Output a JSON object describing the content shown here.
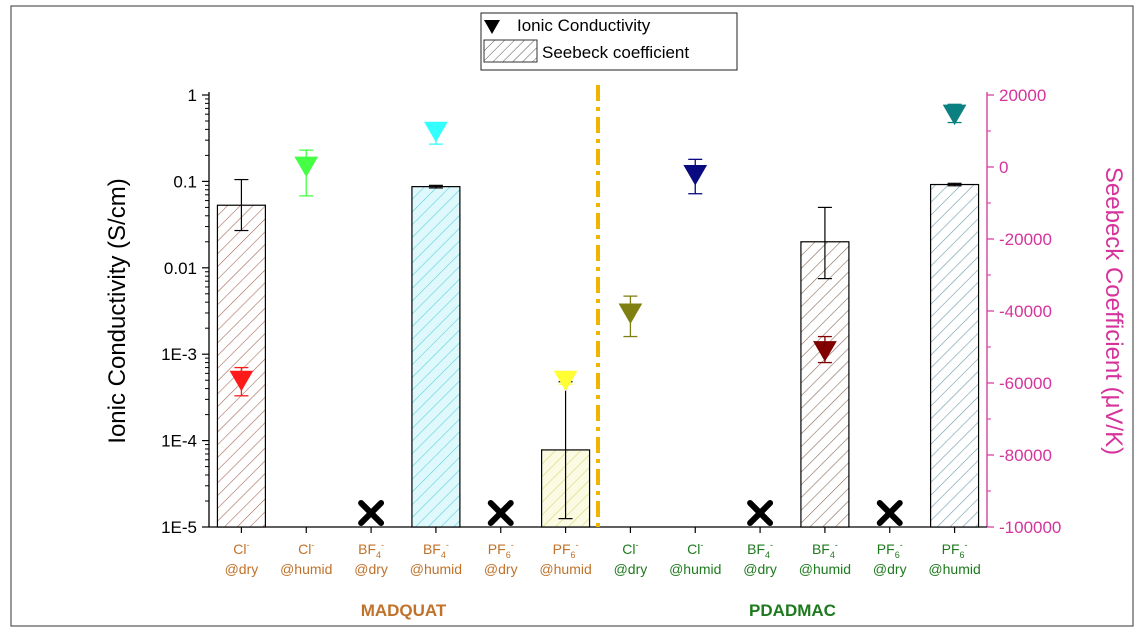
{
  "chart_data": {
    "type": "bar",
    "categories": [
      {
        "anion": "Cl",
        "charge": "-",
        "anion_sub": "",
        "condition": "@dry",
        "group": "MADQUAT"
      },
      {
        "anion": "Cl",
        "charge": "-",
        "anion_sub": "",
        "condition": "@humid",
        "group": "MADQUAT"
      },
      {
        "anion": "BF",
        "charge": "-",
        "anion_sub": "4",
        "condition": "@dry",
        "group": "MADQUAT"
      },
      {
        "anion": "BF",
        "charge": "-",
        "anion_sub": "4",
        "condition": "@humid",
        "group": "MADQUAT"
      },
      {
        "anion": "PF",
        "charge": "-",
        "anion_sub": "6",
        "condition": "@dry",
        "group": "MADQUAT"
      },
      {
        "anion": "PF",
        "charge": "-",
        "anion_sub": "6",
        "condition": "@humid",
        "group": "MADQUAT"
      },
      {
        "anion": "Cl",
        "charge": "-",
        "anion_sub": "",
        "condition": "@dry",
        "group": "PDADMAC"
      },
      {
        "anion": "Cl",
        "charge": "-",
        "anion_sub": "",
        "condition": "@humid",
        "group": "PDADMAC"
      },
      {
        "anion": "BF",
        "charge": "-",
        "anion_sub": "4",
        "condition": "@dry",
        "group": "PDADMAC"
      },
      {
        "anion": "BF",
        "charge": "-",
        "anion_sub": "4",
        "condition": "@humid",
        "group": "PDADMAC"
      },
      {
        "anion": "PF",
        "charge": "-",
        "anion_sub": "6",
        "condition": "@dry",
        "group": "PDADMAC"
      },
      {
        "anion": "PF",
        "charge": "-",
        "anion_sub": "6",
        "condition": "@humid",
        "group": "PDADMAC"
      }
    ],
    "groups": [
      {
        "name": "MADQUAT",
        "color": "#c0722a",
        "from": 0,
        "to": 5
      },
      {
        "name": "PDADMAC",
        "color": "#1e7a1e",
        "from": 6,
        "to": 11
      }
    ],
    "ylabel_left": "Ionic Conductivity (S/cm)",
    "ylabel_right": "Seebeck Coefficient (μV/K)",
    "ylim_left": [
      1e-05,
      1
    ],
    "yscale_left": "log",
    "ylim_right": [
      -100000,
      20000
    ],
    "left_ticks": [
      "1E-5",
      "1E-4",
      "1E-3",
      "0.01",
      "0.1",
      "1"
    ],
    "right_ticks": [
      -100000,
      -80000,
      -60000,
      -40000,
      -20000,
      0,
      20000
    ],
    "right_axis_color": "#d6339c",
    "series": [
      {
        "name": "Ionic Conductivity",
        "kind": "marker",
        "axis": "left",
        "values": [
          0.0005,
          0.15,
          null,
          0.38,
          null,
          0.0005,
          0.003,
          0.12,
          null,
          0.0011,
          null,
          0.6
        ],
        "err_low": [
          0.00033,
          0.068,
          null,
          0.27,
          null,
          0.00045,
          0.0016,
          0.072,
          null,
          0.0008,
          null,
          0.48
        ],
        "err_high": [
          0.0007,
          0.23,
          null,
          0.47,
          null,
          0.0006,
          0.0047,
          0.18,
          null,
          0.0016,
          null,
          0.78
        ],
        "colors": [
          "#ff1a1a",
          "#44ff44",
          null,
          "#33ffff",
          null,
          "#ffff33",
          "#808012",
          "#0a0a80",
          null,
          "#800000",
          null,
          "#0a8080"
        ]
      },
      {
        "name": "Seebeck coefficient",
        "kind": "bar",
        "axis": "left",
        "values": [
          0.053,
          null,
          null,
          0.087,
          null,
          7.8e-05,
          null,
          null,
          null,
          0.02,
          null,
          0.092
        ],
        "err_low": [
          0.027,
          null,
          null,
          0.084,
          null,
          1.25e-05,
          null,
          null,
          null,
          0.0075,
          null,
          0.089
        ],
        "err_high": [
          0.105,
          null,
          null,
          0.09,
          null,
          0.00048,
          null,
          null,
          null,
          0.05,
          null,
          0.095
        ],
        "colors": [
          "#a66a5a",
          null,
          null,
          "#5ccfe0",
          null,
          "#d6d67a",
          null,
          null,
          null,
          "#8a6a5a",
          null,
          "#6a9aaa"
        ],
        "fills": [
          "#ffffff",
          null,
          null,
          "#dff8fb",
          null,
          "#fbfbe3",
          null,
          null,
          null,
          "#ffffff",
          null,
          "#ffffff"
        ]
      }
    ],
    "missing_marker_indices": [
      2,
      4,
      8,
      10
    ],
    "divider": {
      "after_index": 5,
      "color": "#f0b400"
    },
    "legend": {
      "placement": "top-center"
    }
  }
}
